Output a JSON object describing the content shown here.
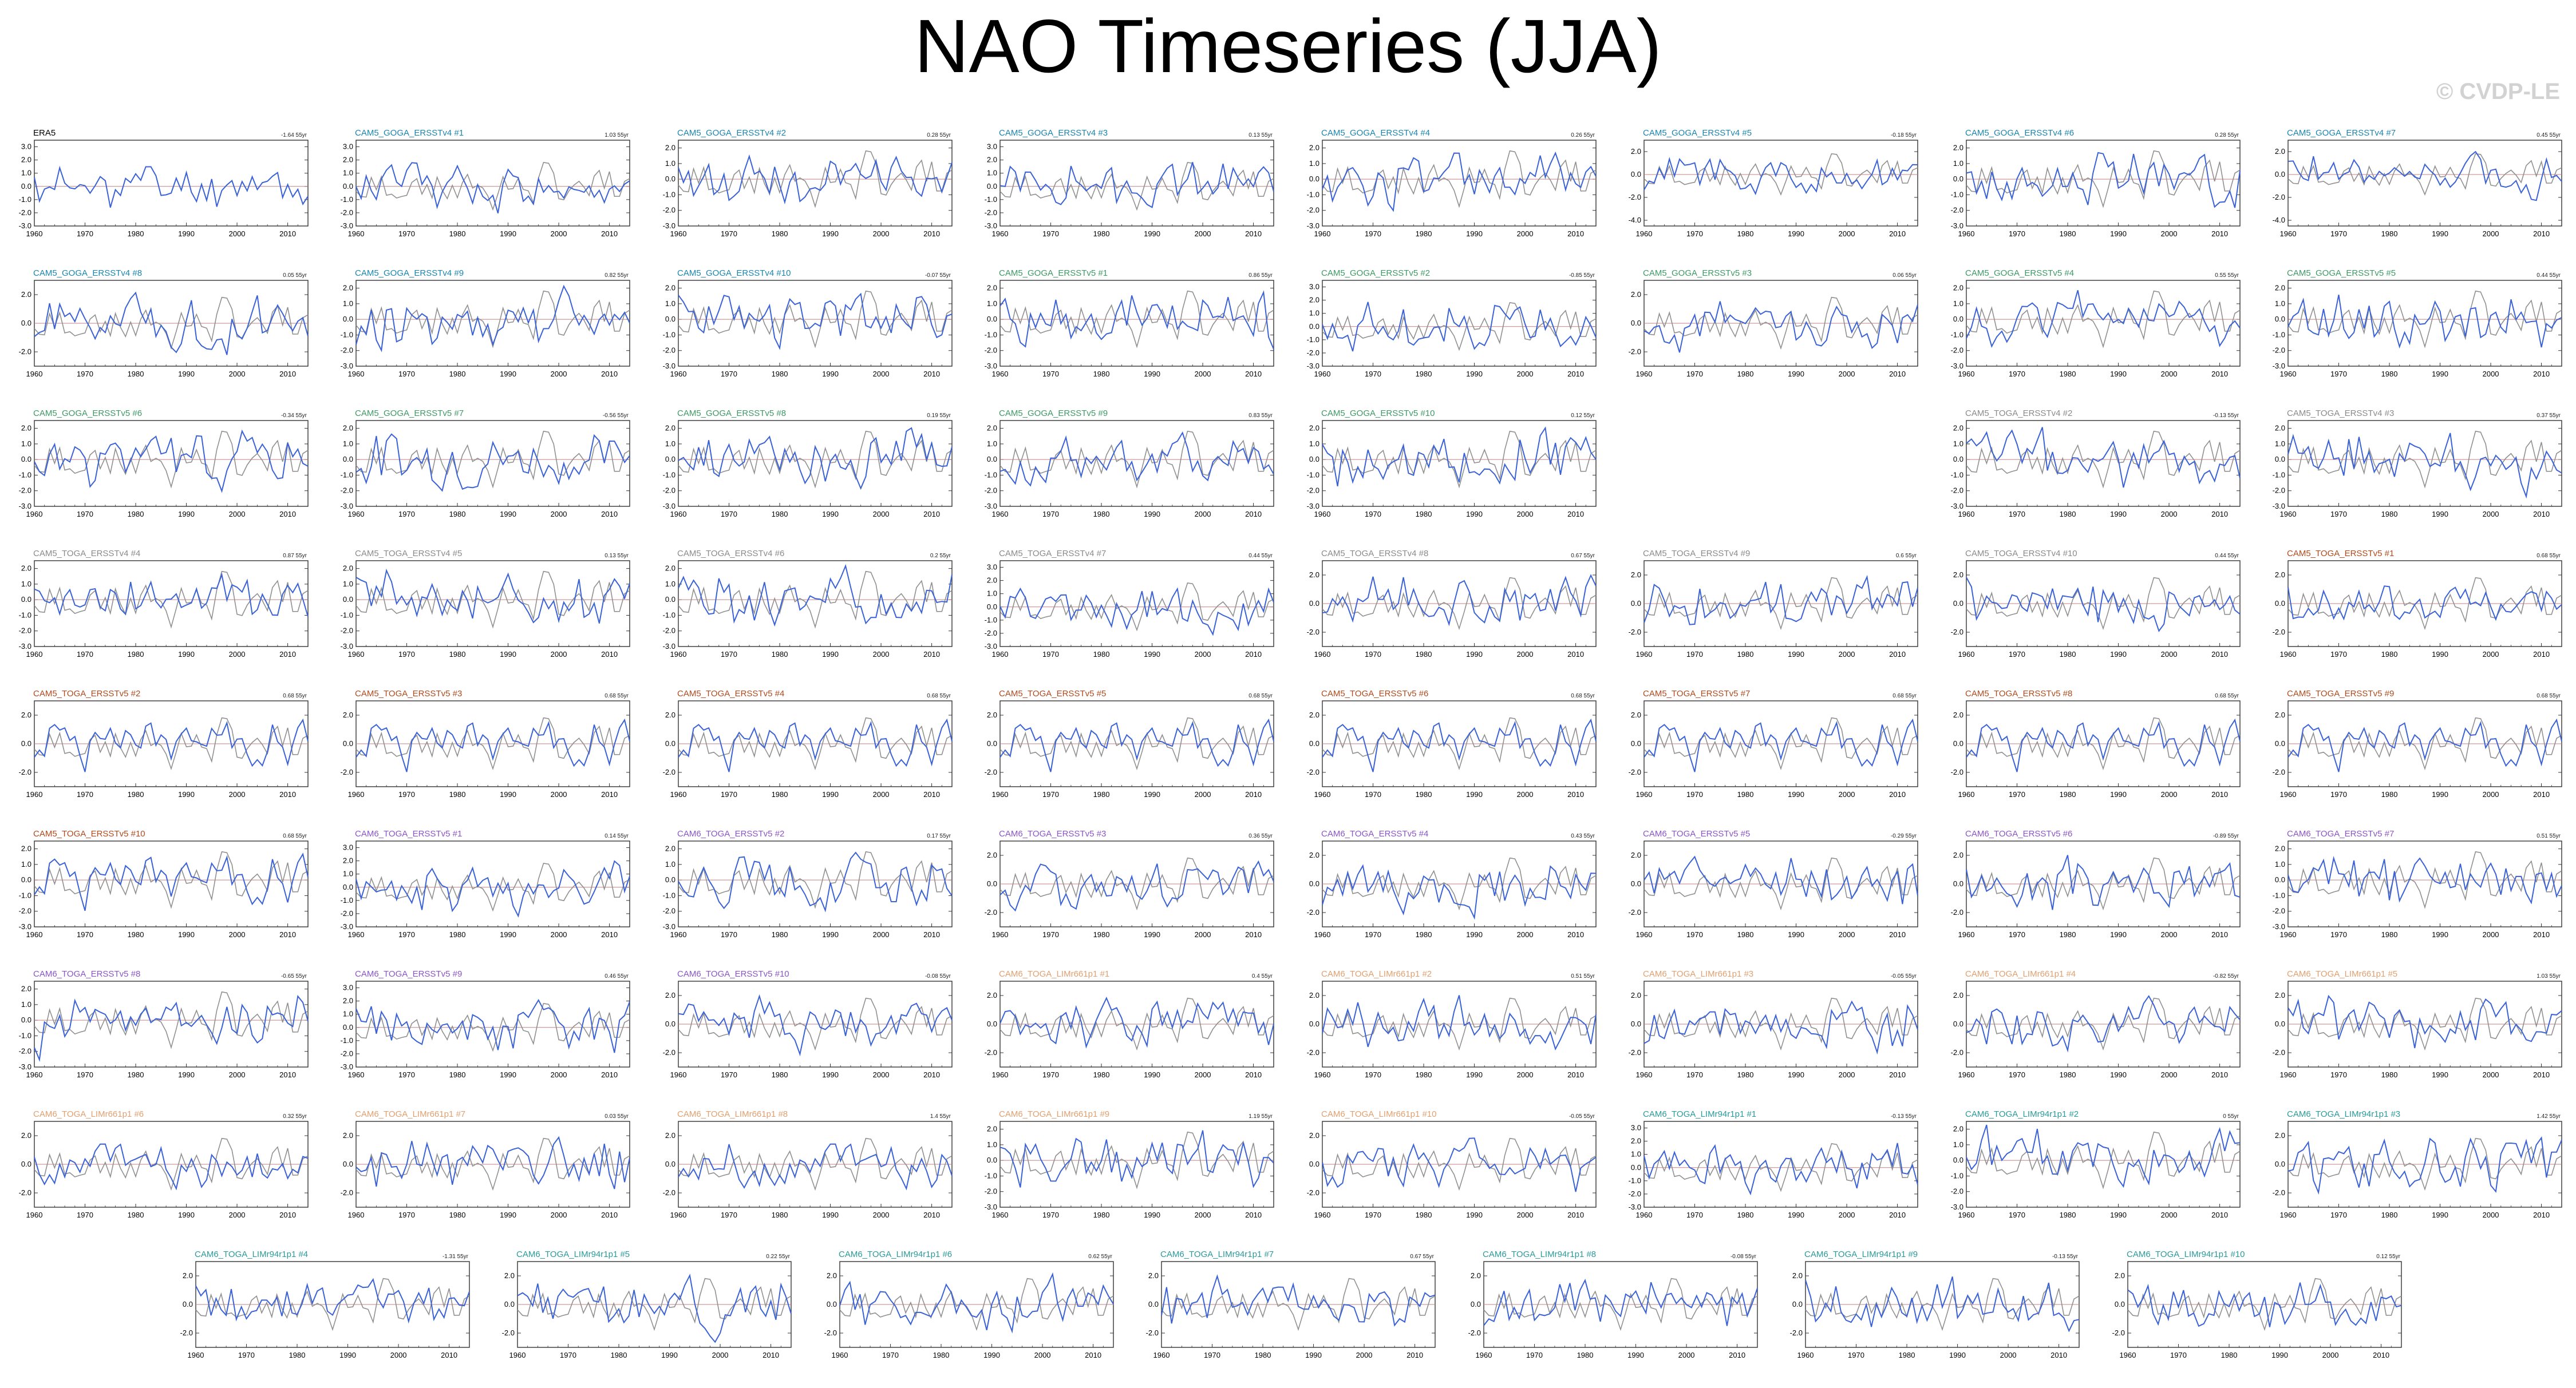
{
  "page": {
    "title": "NAO Timeseries (JJA)",
    "credit": "© CVDP-LE"
  },
  "colors": {
    "model_line": "#3a62d6",
    "obs_line": "#909090",
    "zero_line": "#c08080",
    "axis": "#333333"
  },
  "chart_data": {
    "type": "line",
    "xlim": [
      1960,
      2014
    ],
    "xticks": [
      1960,
      1970,
      1980,
      1990,
      2000,
      2010
    ],
    "yticks_std": [
      "2.0",
      "1.0",
      "0.0",
      "-1.0",
      "-2.0",
      "-3.0"
    ],
    "yticks_ext": [
      "3.0",
      "2.0",
      "1.0",
      "0.0",
      "-1.0",
      "-2.0",
      "-3.0"
    ],
    "yticks_short": [
      "2.0",
      "0.0",
      "-2.0"
    ],
    "yticks_wide": [
      "2.0",
      "0.0",
      "-2.0",
      "-4.0"
    ],
    "ylim_std": [
      -3,
      2.5
    ],
    "ylim_ext": [
      -3,
      3.5
    ],
    "ylim_short": [
      -3,
      3
    ],
    "ylim_wide": [
      -4.5,
      3
    ],
    "series": [
      {
        "name": "ERA5",
        "values": []
      }
    ],
    "panels": [
      {
        "label": "ERA5",
        "trend": "-1.64 55yr",
        "color": "#000000",
        "yt": "ext",
        "obs": false,
        "seed": 11
      },
      {
        "label": "CAM5_GOGA_ERSSTv4 #1",
        "trend": "1.03 55yr",
        "color": "#1a86b0",
        "yt": "ext",
        "obs": true,
        "seed": 12
      },
      {
        "label": "CAM5_GOGA_ERSSTv4 #2",
        "trend": "0.28 55yr",
        "color": "#1a86b0",
        "yt": "std",
        "obs": true,
        "seed": 13
      },
      {
        "label": "CAM5_GOGA_ERSSTv4 #3",
        "trend": "0.13 55yr",
        "color": "#1a86b0",
        "yt": "ext",
        "obs": true,
        "seed": 14
      },
      {
        "label": "CAM5_GOGA_ERSSTv4 #4",
        "trend": "0.26 55yr",
        "color": "#1a86b0",
        "yt": "std",
        "obs": true,
        "seed": 15
      },
      {
        "label": "CAM5_GOGA_ERSSTv4 #5",
        "trend": "-0.18 55yr",
        "color": "#1a86b0",
        "yt": "wide",
        "obs": true,
        "seed": 16
      },
      {
        "label": "CAM5_GOGA_ERSSTv4 #6",
        "trend": "0.28 55yr",
        "color": "#1a86b0",
        "yt": "std",
        "obs": true,
        "seed": 17
      },
      {
        "label": "CAM5_GOGA_ERSSTv4 #7",
        "trend": "0.45 55yr",
        "color": "#1a86b0",
        "yt": "wide",
        "obs": true,
        "seed": 18
      },
      {
        "label": "CAM5_GOGA_ERSSTv4 #8",
        "trend": "0.05 55yr",
        "color": "#1a86b0",
        "yt": "short",
        "obs": true,
        "seed": 21
      },
      {
        "label": "CAM5_GOGA_ERSSTv4 #9",
        "trend": "0.82 55yr",
        "color": "#1a86b0",
        "yt": "std",
        "obs": true,
        "seed": 22
      },
      {
        "label": "CAM5_GOGA_ERSSTv4 #10",
        "trend": "-0.07 55yr",
        "color": "#1a86b0",
        "yt": "std",
        "obs": true,
        "seed": 23
      },
      {
        "label": "CAM5_GOGA_ERSSTv5 #1",
        "trend": "0.86 55yr",
        "color": "#3d9a64",
        "yt": "std",
        "obs": true,
        "seed": 24
      },
      {
        "label": "CAM5_GOGA_ERSSTv5 #2",
        "trend": "-0.85 55yr",
        "color": "#3d9a64",
        "yt": "ext",
        "obs": true,
        "seed": 25
      },
      {
        "label": "CAM5_GOGA_ERSSTv5 #3",
        "trend": "0.06 55yr",
        "color": "#3d9a64",
        "yt": "short",
        "obs": true,
        "seed": 26
      },
      {
        "label": "CAM5_GOGA_ERSSTv5 #4",
        "trend": "0.55 55yr",
        "color": "#3d9a64",
        "yt": "std",
        "obs": true,
        "seed": 27
      },
      {
        "label": "CAM5_GOGA_ERSSTv5 #5",
        "trend": "0.44 55yr",
        "color": "#3d9a64",
        "yt": "std",
        "obs": true,
        "seed": 28
      },
      {
        "label": "CAM5_GOGA_ERSSTv5 #6",
        "trend": "-0.34 55yr",
        "color": "#3d9a64",
        "yt": "std",
        "obs": true,
        "seed": 31
      },
      {
        "label": "CAM5_GOGA_ERSSTv5 #7",
        "trend": "-0.56 55yr",
        "color": "#3d9a64",
        "yt": "std",
        "obs": true,
        "seed": 32
      },
      {
        "label": "CAM5_GOGA_ERSSTv5 #8",
        "trend": "0.19 55yr",
        "color": "#3d9a64",
        "yt": "std",
        "obs": true,
        "seed": 33
      },
      {
        "label": "CAM5_GOGA_ERSSTv5 #9",
        "trend": "0.83 55yr",
        "color": "#3d9a64",
        "yt": "std",
        "obs": true,
        "seed": 34
      },
      {
        "label": "CAM5_GOGA_ERSSTv5 #10",
        "trend": "0.12 55yr",
        "color": "#3d9a64",
        "yt": "std",
        "obs": true,
        "seed": 35
      },
      null,
      {
        "label": "CAM5_TOGA_ERSSTv4 #2",
        "trend": "-0.13 55yr",
        "color": "#8a8a8a",
        "yt": "std",
        "obs": true,
        "seed": 37
      },
      {
        "label": "CAM5_TOGA_ERSSTv4 #3",
        "trend": "0.37 55yr",
        "color": "#8a8a8a",
        "yt": "std",
        "obs": true,
        "seed": 38
      },
      {
        "label": "CAM5_TOGA_ERSSTv4 #4",
        "trend": "0.87 55yr",
        "color": "#8a8a8a",
        "yt": "std",
        "obs": true,
        "seed": 41
      },
      {
        "label": "CAM5_TOGA_ERSSTv4 #5",
        "trend": "0.13 55yr",
        "color": "#8a8a8a",
        "yt": "std",
        "obs": true,
        "seed": 42
      },
      {
        "label": "CAM5_TOGA_ERSSTv4 #6",
        "trend": "0.2 55yr",
        "color": "#8a8a8a",
        "yt": "std",
        "obs": true,
        "seed": 43
      },
      {
        "label": "CAM5_TOGA_ERSSTv4 #7",
        "trend": "0.44 55yr",
        "color": "#8a8a8a",
        "yt": "ext",
        "obs": true,
        "seed": 44
      },
      {
        "label": "CAM5_TOGA_ERSSTv4 #8",
        "trend": "0.67 55yr",
        "color": "#8a8a8a",
        "yt": "short",
        "obs": true,
        "seed": 45
      },
      {
        "label": "CAM5_TOGA_ERSSTv4 #9",
        "trend": "0.6 55yr",
        "color": "#8a8a8a",
        "yt": "short",
        "obs": true,
        "seed": 46
      },
      {
        "label": "CAM5_TOGA_ERSSTv4 #10",
        "trend": "0.44 55yr",
        "color": "#8a8a8a",
        "yt": "short",
        "obs": true,
        "seed": 47
      },
      {
        "label": "CAM5_TOGA_ERSSTv5 #1",
        "trend": "0.68 55yr",
        "color": "#b04a1c",
        "yt": "short",
        "obs": true,
        "seed": 48
      },
      {
        "label": "CAM5_TOGA_ERSSTv5 #2",
        "trend": "0.68 55yr",
        "color": "#b04a1c",
        "yt": "short",
        "obs": true,
        "seed": 51
      },
      {
        "label": "CAM5_TOGA_ERSSTv5 #3",
        "trend": "0.68 55yr",
        "color": "#b04a1c",
        "yt": "short",
        "obs": true,
        "seed": 51
      },
      {
        "label": "CAM5_TOGA_ERSSTv5 #4",
        "trend": "0.68 55yr",
        "color": "#b04a1c",
        "yt": "short",
        "obs": true,
        "seed": 51
      },
      {
        "label": "CAM5_TOGA_ERSSTv5 #5",
        "trend": "0.68 55yr",
        "color": "#b04a1c",
        "yt": "short",
        "obs": true,
        "seed": 51
      },
      {
        "label": "CAM5_TOGA_ERSSTv5 #6",
        "trend": "0.68 55yr",
        "color": "#b04a1c",
        "yt": "short",
        "obs": true,
        "seed": 51
      },
      {
        "label": "CAM5_TOGA_ERSSTv5 #7",
        "trend": "0.68 55yr",
        "color": "#b04a1c",
        "yt": "short",
        "obs": true,
        "seed": 51
      },
      {
        "label": "CAM5_TOGA_ERSSTv5 #8",
        "trend": "0.68 55yr",
        "color": "#b04a1c",
        "yt": "short",
        "obs": true,
        "seed": 51
      },
      {
        "label": "CAM5_TOGA_ERSSTv5 #9",
        "trend": "0.68 55yr",
        "color": "#b04a1c",
        "yt": "short",
        "obs": true,
        "seed": 51
      },
      {
        "label": "CAM5_TOGA_ERSSTv5 #10",
        "trend": "0.68 55yr",
        "color": "#b04a1c",
        "yt": "std",
        "obs": true,
        "seed": 51
      },
      {
        "label": "CAM6_TOGA_ERSSTv5 #1",
        "trend": "0.14 55yr",
        "color": "#8a55c8",
        "yt": "ext",
        "obs": true,
        "seed": 62
      },
      {
        "label": "CAM6_TOGA_ERSSTv5 #2",
        "trend": "0.17 55yr",
        "color": "#8a55c8",
        "yt": "std",
        "obs": true,
        "seed": 63
      },
      {
        "label": "CAM6_TOGA_ERSSTv5 #3",
        "trend": "0.36 55yr",
        "color": "#8a55c8",
        "yt": "short",
        "obs": true,
        "seed": 64
      },
      {
        "label": "CAM6_TOGA_ERSSTv5 #4",
        "trend": "0.43 55yr",
        "color": "#8a55c8",
        "yt": "short",
        "obs": true,
        "seed": 65
      },
      {
        "label": "CAM6_TOGA_ERSSTv5 #5",
        "trend": "-0.29 55yr",
        "color": "#8a55c8",
        "yt": "short",
        "obs": true,
        "seed": 66
      },
      {
        "label": "CAM6_TOGA_ERSSTv5 #6",
        "trend": "-0.89 55yr",
        "color": "#8a55c8",
        "yt": "short",
        "obs": true,
        "seed": 67
      },
      {
        "label": "CAM6_TOGA_ERSSTv5 #7",
        "trend": "0.51 55yr",
        "color": "#8a55c8",
        "yt": "std",
        "obs": true,
        "seed": 68
      },
      {
        "label": "CAM6_TOGA_ERSSTv5 #8",
        "trend": "-0.65 55yr",
        "color": "#8a55c8",
        "yt": "std",
        "obs": true,
        "seed": 71
      },
      {
        "label": "CAM6_TOGA_ERSSTv5 #9",
        "trend": "0.46 55yr",
        "color": "#8a55c8",
        "yt": "ext",
        "obs": true,
        "seed": 72
      },
      {
        "label": "CAM6_TOGA_ERSSTv5 #10",
        "trend": "-0.08 55yr",
        "color": "#8a55c8",
        "yt": "short",
        "obs": true,
        "seed": 73
      },
      {
        "label": "CAM6_TOGA_LIMr661p1 #1",
        "trend": "0.4 55yr",
        "color": "#e0a070",
        "yt": "short",
        "obs": true,
        "seed": 74
      },
      {
        "label": "CAM6_TOGA_LIMr661p1 #2",
        "trend": "0.51 55yr",
        "color": "#e0a070",
        "yt": "short",
        "obs": true,
        "seed": 75
      },
      {
        "label": "CAM6_TOGA_LIMr661p1 #3",
        "trend": "-0.05 55yr",
        "color": "#e0a070",
        "yt": "short",
        "obs": true,
        "seed": 76
      },
      {
        "label": "CAM6_TOGA_LIMr661p1 #4",
        "trend": "-0.82 55yr",
        "color": "#e0a070",
        "yt": "short",
        "obs": true,
        "seed": 77
      },
      {
        "label": "CAM6_TOGA_LIMr661p1 #5",
        "trend": "1.03 55yr",
        "color": "#e0a070",
        "yt": "short",
        "obs": true,
        "seed": 78
      },
      {
        "label": "CAM6_TOGA_LIMr661p1 #6",
        "trend": "0.32 55yr",
        "color": "#e0a070",
        "yt": "short",
        "obs": true,
        "seed": 81
      },
      {
        "label": "CAM6_TOGA_LIMr661p1 #7",
        "trend": "0.03 55yr",
        "color": "#e0a070",
        "yt": "short",
        "obs": true,
        "seed": 82
      },
      {
        "label": "CAM6_TOGA_LIMr661p1 #8",
        "trend": "1.4 55yr",
        "color": "#e0a070",
        "yt": "short",
        "obs": true,
        "seed": 83
      },
      {
        "label": "CAM6_TOGA_LIMr661p1 #9",
        "trend": "1.19 55yr",
        "color": "#e0a070",
        "yt": "std",
        "obs": true,
        "seed": 84
      },
      {
        "label": "CAM6_TOGA_LIMr661p1 #10",
        "trend": "-0.05 55yr",
        "color": "#e0a070",
        "yt": "short",
        "obs": true,
        "seed": 85
      },
      {
        "label": "CAM6_TOGA_LIMr94r1p1 #1",
        "trend": "-0.13 55yr",
        "color": "#2a9a9a",
        "yt": "ext",
        "obs": true,
        "seed": 86
      },
      {
        "label": "CAM6_TOGA_LIMr94r1p1 #2",
        "trend": "0 55yr",
        "color": "#2a9a9a",
        "yt": "std",
        "obs": true,
        "seed": 87
      },
      {
        "label": "CAM6_TOGA_LIMr94r1p1 #3",
        "trend": "1.42 55yr",
        "color": "#2a9a9a",
        "yt": "short",
        "obs": true,
        "seed": 88
      },
      {
        "label": "CAM6_TOGA_LIMr94r1p1 #4",
        "trend": "-1.31 55yr",
        "color": "#2a9a9a",
        "yt": "short",
        "obs": true,
        "seed": 91
      },
      {
        "label": "CAM6_TOGA_LIMr94r1p1 #5",
        "trend": "0.22 55yr",
        "color": "#2a9a9a",
        "yt": "short",
        "obs": true,
        "seed": 92
      },
      {
        "label": "CAM6_TOGA_LIMr94r1p1 #6",
        "trend": "0.62 55yr",
        "color": "#2a9a9a",
        "yt": "short",
        "obs": true,
        "seed": 93
      },
      {
        "label": "CAM6_TOGA_LIMr94r1p1 #7",
        "trend": "0.67 55yr",
        "color": "#2a9a9a",
        "yt": "short",
        "obs": true,
        "seed": 94
      },
      {
        "label": "CAM6_TOGA_LIMr94r1p1 #8",
        "trend": "-0.08 55yr",
        "color": "#2a9a9a",
        "yt": "short",
        "obs": true,
        "seed": 95
      },
      {
        "label": "CAM6_TOGA_LIMr94r1p1 #9",
        "trend": "-0.13 55yr",
        "color": "#2a9a9a",
        "yt": "short",
        "obs": true,
        "seed": 96
      },
      {
        "label": "CAM6_TOGA_LIMr94r1p1 #10",
        "trend": "0.12 55yr",
        "color": "#2a9a9a",
        "yt": "short",
        "obs": true,
        "seed": 97
      }
    ]
  }
}
